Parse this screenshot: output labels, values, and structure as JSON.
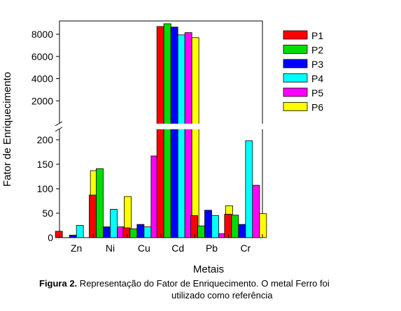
{
  "chart_data": {
    "type": "bar",
    "xlabel": "Metais",
    "ylabel": "Fator de Enriquecimento",
    "categories": [
      "Zn",
      "Ni",
      "Cu",
      "Cd",
      "Pb",
      "Cr"
    ],
    "series": [
      {
        "name": "P1",
        "color": "#ff0000",
        "values": [
          13,
          87,
          20,
          8700,
          45,
          48
        ]
      },
      {
        "name": "P2",
        "color": "#00dd00",
        "values": [
          0,
          141,
          18,
          8950,
          24,
          46
        ]
      },
      {
        "name": "P3",
        "color": "#0000ff",
        "values": [
          5,
          22,
          27,
          8650,
          56,
          27
        ]
      },
      {
        "name": "P4",
        "color": "#00ffff",
        "values": [
          25,
          58,
          22,
          7950,
          45,
          198
        ]
      },
      {
        "name": "P5",
        "color": "#ff00ff",
        "values": [
          0,
          22,
          167,
          8150,
          8,
          107
        ]
      },
      {
        "name": "P6",
        "color": "#ffff00",
        "values": [
          137,
          84,
          74,
          7700,
          65,
          49
        ]
      }
    ],
    "y_axis_break": {
      "lower_range": [
        0,
        220
      ],
      "upper_range": [
        0,
        9200
      ],
      "lower_ticks": [
        "0",
        "50",
        "100",
        "150",
        "200"
      ],
      "upper_ticks": [
        "2000",
        "4000",
        "6000",
        "8000"
      ]
    },
    "legend_position": "top-right",
    "grid": false
  },
  "caption": {
    "label": "Figura 2.",
    "text": " Representação do Fator de Enriquecimento. O metal Ferro foi",
    "line2": "utilizado como referência"
  }
}
